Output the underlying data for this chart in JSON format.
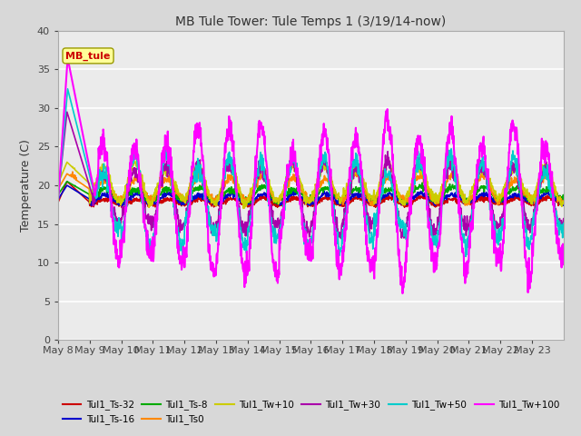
{
  "title": "MB Tule Tower: Tule Temps 1 (3/19/14-now)",
  "ylabel": "Temperature (C)",
  "ylim": [
    0,
    40
  ],
  "yticks": [
    0,
    5,
    10,
    15,
    20,
    25,
    30,
    35,
    40
  ],
  "plot_bg": "#ebebeb",
  "fig_bg": "#d8d8d8",
  "legend_box_color": "#ffff99",
  "legend_box_text": "MB_tule",
  "series": [
    {
      "label": "Tul1_Ts-32",
      "color": "#cc0000"
    },
    {
      "label": "Tul1_Ts-16",
      "color": "#0000cc"
    },
    {
      "label": "Tul1_Ts-8",
      "color": "#00aa00"
    },
    {
      "label": "Tul1_Ts0",
      "color": "#ff8800"
    },
    {
      "label": "Tul1_Tw+10",
      "color": "#cccc00"
    },
    {
      "label": "Tul1_Tw+30",
      "color": "#aa00aa"
    },
    {
      "label": "Tul1_Tw+50",
      "color": "#00cccc"
    },
    {
      "label": "Tul1_Tw+100",
      "color": "#ff00ff"
    }
  ],
  "xtick_labels": [
    "May 8",
    "May 9",
    "May 10",
    "May 11",
    "May 12",
    "May 13",
    "May 14",
    "May 15",
    "May 16",
    "May 17",
    "May 18",
    "May 19",
    "May 20",
    "May 21",
    "May 22",
    "May 23"
  ],
  "num_days": 16,
  "series_params": {
    "Tul1_Ts-32": {
      "base": 17.8,
      "amp": 0.4,
      "phase": 0.0,
      "noise": 0.15,
      "trend": 0.012
    },
    "Tul1_Ts-16": {
      "base": 18.2,
      "amp": 0.6,
      "phase": 0.1,
      "noise": 0.15,
      "trend": 0.01
    },
    "Tul1_Ts-8": {
      "base": 18.8,
      "amp": 0.8,
      "phase": 0.2,
      "noise": 0.2,
      "trend": 0.008
    },
    "Tul1_Ts0": {
      "base": 19.5,
      "amp": 1.5,
      "phase": 0.3,
      "noise": 0.25,
      "trend": 0.005
    },
    "Tul1_Tw+10": {
      "base": 20.2,
      "amp": 2.2,
      "phase": 0.4,
      "noise": 0.3,
      "trend": 0.003
    },
    "Tul1_Tw+30": {
      "base": 18.5,
      "amp": 4.0,
      "phase": 0.5,
      "noise": 0.5,
      "trend": 0.0
    },
    "Tul1_Tw+50": {
      "base": 18.0,
      "amp": 5.0,
      "phase": 0.5,
      "noise": 0.6,
      "trend": 0.0
    },
    "Tul1_Tw+100": {
      "base": 18.0,
      "amp": 8.5,
      "phase": 0.5,
      "noise": 0.8,
      "trend": 0.0
    }
  },
  "lw_map": {
    "Tul1_Ts-32": 1.2,
    "Tul1_Ts-16": 1.2,
    "Tul1_Ts-8": 1.2,
    "Tul1_Ts0": 1.2,
    "Tul1_Tw+10": 1.2,
    "Tul1_Tw+30": 1.2,
    "Tul1_Tw+50": 1.2,
    "Tul1_Tw+100": 1.5
  }
}
